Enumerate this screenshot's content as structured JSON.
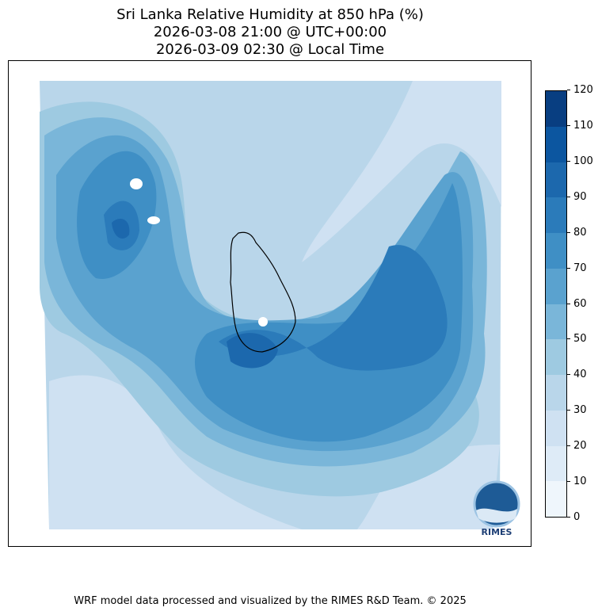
{
  "title": {
    "line1": "Sri Lanka Relative Humidity at 850 hPa (%)",
    "line2": "2026-03-08 21:00 @ UTC+00:00",
    "line3": "2026-03-09 02:30 @ Local Time"
  },
  "footer": "WRF model data processed and visualized by the RIMES R&D Team. © 2025",
  "logo": {
    "text": "RIMES"
  },
  "chart_data": {
    "type": "heatmap",
    "title": "Sri Lanka Relative Humidity at 850 hPa (%)",
    "variable": "Relative Humidity (%)",
    "colorbar": {
      "levels": [
        0,
        10,
        20,
        30,
        40,
        50,
        60,
        70,
        80,
        90,
        100,
        110,
        120
      ],
      "tick_labels": [
        "0",
        "10",
        "20",
        "30",
        "40",
        "50",
        "60",
        "70",
        "80",
        "90",
        "100",
        "110",
        "120"
      ],
      "colors": [
        "#eff6fc",
        "#deebf7",
        "#cfe1f2",
        "#b9d6ea",
        "#9ecae1",
        "#7ab6d9",
        "#5aa2cf",
        "#3f8fc5",
        "#2b7bba",
        "#1c68ad",
        "#0c56a0",
        "#083e81"
      ],
      "range": [
        0,
        120
      ]
    }
  }
}
